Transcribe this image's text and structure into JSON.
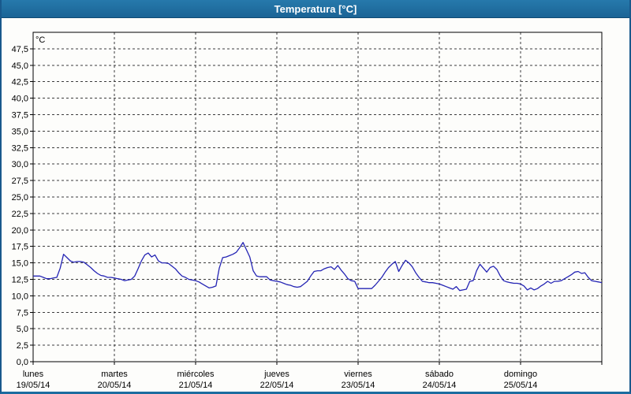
{
  "window": {
    "title": "Temperatura [°C]"
  },
  "colors": {
    "title_bar": "#1e6c9e",
    "window_border": "#19598c",
    "plot_border": "#000000",
    "gridline": "#3c3c3c",
    "series_line": "#2424b4",
    "text": "#000000",
    "background": "#fdfdfb"
  },
  "chart_data": {
    "type": "line",
    "title": "Temperatura [°C]",
    "grid": "dashed",
    "legend": "none",
    "y_axis": {
      "unit_label": "°C",
      "min": 0,
      "max": 50,
      "tick_step": 2.5,
      "tick_labels": [
        "0,0",
        "2,5",
        "5,0",
        "7,5",
        "10,0",
        "12,5",
        "15,0",
        "17,5",
        "20,0",
        "22,5",
        "25,0",
        "27,5",
        "30,0",
        "32,5",
        "35,0",
        "37,5",
        "40,0",
        "42,5",
        "45,0",
        "47,5"
      ]
    },
    "x_axis": {
      "range_hours": [
        0,
        168
      ],
      "days": [
        {
          "name": "lunes",
          "date": "19/05/14"
        },
        {
          "name": "martes",
          "date": "20/05/14"
        },
        {
          "name": "miércoles",
          "date": "21/05/14"
        },
        {
          "name": "jueves",
          "date": "22/05/14"
        },
        {
          "name": "viernes",
          "date": "23/05/14"
        },
        {
          "name": "sábado",
          "date": "24/05/14"
        },
        {
          "name": "domingo",
          "date": "25/05/14"
        }
      ]
    },
    "series": [
      {
        "name": "Temperatura",
        "color": "#2424b4",
        "hours_per_point": 1,
        "values": [
          13.0,
          13.0,
          13.0,
          12.8,
          12.6,
          12.6,
          12.7,
          12.8,
          14.2,
          16.3,
          15.8,
          15.3,
          15.1,
          15.2,
          15.2,
          15.1,
          14.7,
          14.3,
          13.8,
          13.4,
          13.1,
          13.0,
          12.8,
          12.8,
          12.7,
          12.6,
          12.5,
          12.3,
          12.4,
          12.5,
          13.0,
          14.1,
          15.3,
          16.2,
          16.5,
          15.9,
          16.2,
          15.3,
          15.0,
          15.0,
          14.9,
          14.5,
          14.1,
          13.5,
          13.0,
          12.8,
          12.5,
          12.4,
          12.3,
          12.1,
          11.8,
          11.5,
          11.2,
          11.3,
          11.5,
          14.2,
          15.8,
          15.9,
          16.1,
          16.3,
          16.6,
          17.3,
          18.1,
          17.0,
          15.9,
          13.8,
          13.0,
          12.9,
          12.9,
          12.9,
          12.4,
          12.3,
          12.2,
          12.1,
          11.9,
          11.7,
          11.6,
          11.4,
          11.3,
          11.4,
          11.8,
          12.2,
          13.0,
          13.7,
          13.8,
          13.8,
          14.1,
          14.3,
          14.4,
          14.0,
          14.6,
          13.9,
          13.3,
          12.6,
          12.3,
          12.2,
          11.1,
          11.1,
          11.1,
          11.1,
          11.1,
          11.6,
          12.2,
          12.8,
          13.6,
          14.3,
          14.8,
          15.2,
          13.7,
          14.6,
          15.4,
          15.0,
          14.4,
          13.5,
          12.8,
          12.2,
          12.1,
          12.0,
          12.0,
          11.9,
          11.8,
          11.6,
          11.4,
          11.2,
          11.0,
          11.4,
          10.8,
          10.9,
          11.0,
          12.2,
          12.3,
          13.8,
          14.8,
          14.2,
          13.6,
          14.3,
          14.5,
          14.0,
          13.0,
          12.3,
          12.1,
          12.0,
          11.9,
          11.9,
          11.8,
          11.5,
          10.9,
          11.2,
          10.9,
          11.1,
          11.5,
          11.8,
          12.2,
          11.9,
          12.2,
          12.2,
          12.3,
          12.6,
          12.9,
          13.2,
          13.6,
          13.7,
          13.4,
          13.5,
          12.8,
          12.3,
          12.2,
          12.1,
          12.0
        ]
      }
    ]
  }
}
